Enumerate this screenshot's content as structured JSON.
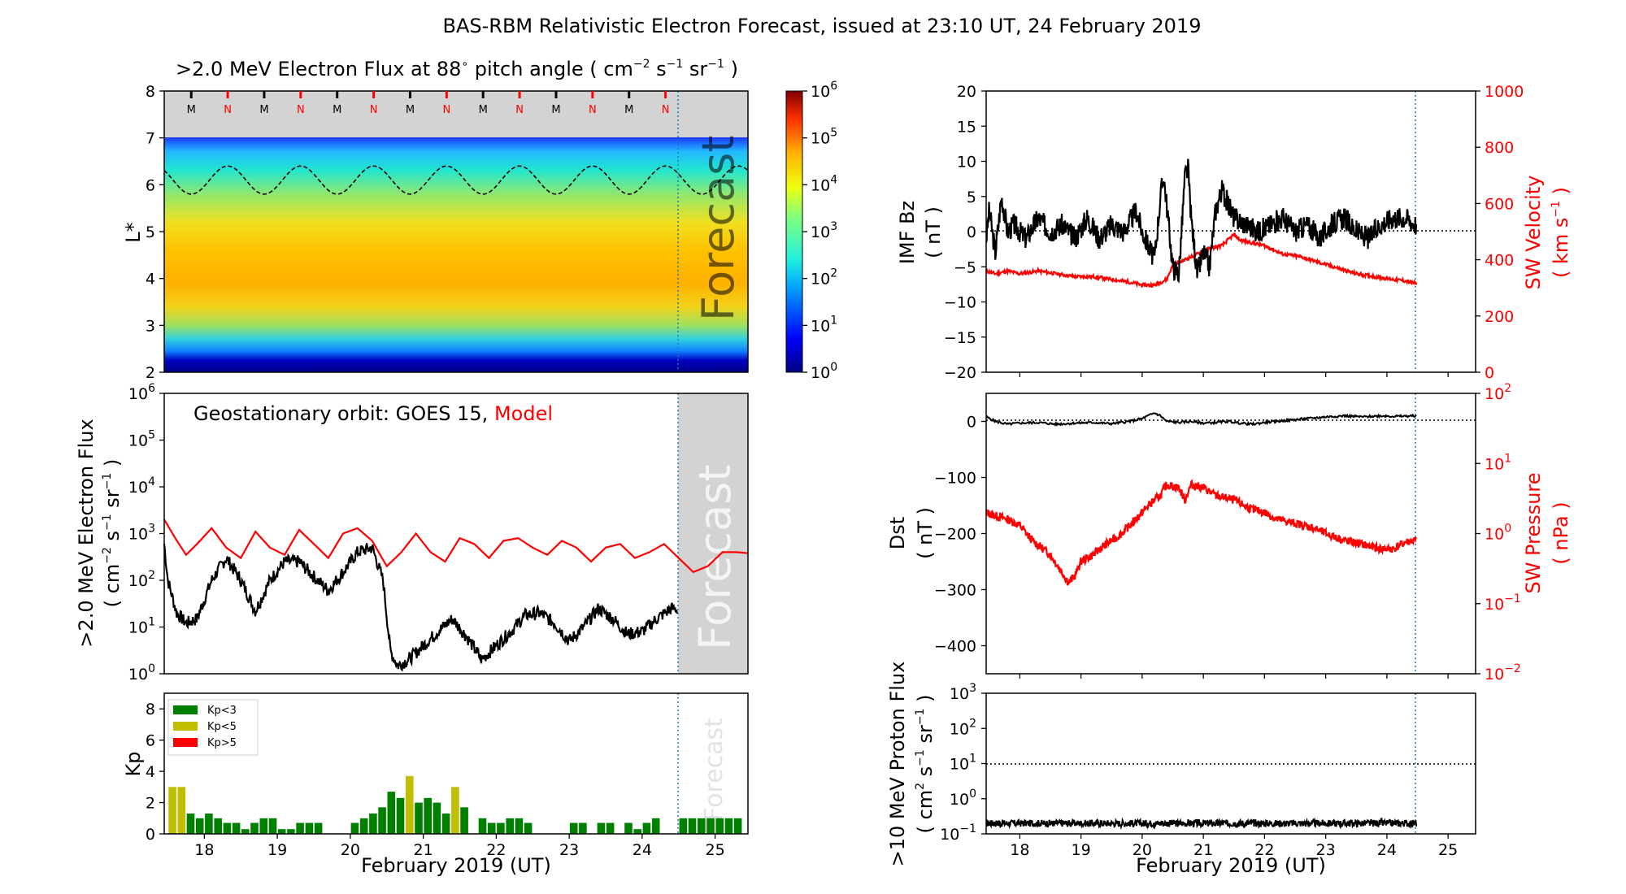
{
  "title": "BAS-RBM Relativistic Electron Forecast, issued at 23:10 UT, 24 February 2019",
  "x_axis_label": "February 2019 (UT)",
  "x_ticks": [
    "18",
    "19",
    "20",
    "21",
    "22",
    "23",
    "24",
    "25"
  ],
  "forecast_label": "Forecast",
  "colors": {
    "model": "#ff0000",
    "observed": "#000000",
    "forecast_shade": "#d3d3d3",
    "forecast_line": "#1f77b4",
    "kp_low": "#008000",
    "kp_mid": "#bfbf00",
    "kp_high": "#ff0000"
  },
  "chart_data": [
    {
      "id": "flux_map",
      "type": "heatmap",
      "title": ">2.0 MeV Electron Flux at 88° pitch angle ( cm-2 s-1 sr-1 )",
      "title_parts": {
        "prefix": ">2.0 MeV Electron Flux at 88",
        "deg": "∘",
        "mid": " pitch angle ( cm",
        "u1": "−2",
        "s": " s",
        "u2": "−1",
        "sr": " sr",
        "u3": "−1",
        "end": " )"
      },
      "ylabel": "L*",
      "ylim": [
        2,
        8
      ],
      "y_ticks": [
        "2",
        "3",
        "4",
        "5",
        "6",
        "7",
        "8"
      ],
      "xlim": [
        17.45,
        25.45
      ],
      "color_scale": "log",
      "colorbar_ticks": [
        {
          "base": "10",
          "exp": "0"
        },
        {
          "base": "10",
          "exp": "1"
        },
        {
          "base": "10",
          "exp": "2"
        },
        {
          "base": "10",
          "exp": "3"
        },
        {
          "base": "10",
          "exp": "4"
        },
        {
          "base": "10",
          "exp": "5"
        },
        {
          "base": "10",
          "exp": "6"
        }
      ],
      "orbit_markers": [
        "M",
        "N",
        "M",
        "N",
        "M",
        "N",
        "M",
        "N",
        "M",
        "N",
        "M",
        "N",
        "M",
        "N"
      ],
      "orbit_marker_colors": [
        "#000000",
        "#ff0000"
      ],
      "data_outer_L": 7,
      "geo_orbit_L_range": [
        5.8,
        6.4
      ]
    },
    {
      "id": "geo_flux",
      "type": "line",
      "ylabel": ">2.0 MeV Electron Flux",
      "ylabel_units": "( cm-2 s-1 sr-1 )",
      "ylim": [
        1,
        1000000
      ],
      "yscale": "log",
      "xlim": [
        17.45,
        25.45
      ],
      "legend_text": "Geostationary orbit:   GOES 15, ",
      "legend_model": "Model",
      "series": [
        {
          "name": "GOES 15",
          "x": [
            17.45,
            17.5,
            17.62,
            17.75,
            17.9,
            18.1,
            18.3,
            18.5,
            18.7,
            18.9,
            19.1,
            19.3,
            19.5,
            19.7,
            19.9,
            20.1,
            20.3,
            20.45,
            20.55,
            20.65,
            20.8,
            21.0,
            21.2,
            21.4,
            21.6,
            21.8,
            22.0,
            22.2,
            22.4,
            22.6,
            22.8,
            23.0,
            23.2,
            23.4,
            23.6,
            23.8,
            24.0,
            24.2,
            24.4,
            24.48
          ],
          "y": [
            600,
            100,
            20,
            12,
            15,
            100,
            300,
            100,
            22,
            100,
            250,
            250,
            120,
            60,
            150,
            400,
            500,
            100,
            3,
            1.5,
            2,
            4,
            8,
            15,
            6,
            2,
            4,
            8,
            18,
            20,
            12,
            5,
            10,
            25,
            15,
            7,
            8,
            15,
            25,
            24
          ]
        },
        {
          "name": "Model",
          "x": [
            17.45,
            17.6,
            17.75,
            17.9,
            18.1,
            18.3,
            18.5,
            18.7,
            18.9,
            19.1,
            19.3,
            19.5,
            19.7,
            19.9,
            20.1,
            20.3,
            20.5,
            20.7,
            20.9,
            21.1,
            21.3,
            21.5,
            21.7,
            21.9,
            22.1,
            22.3,
            22.5,
            22.7,
            22.9,
            23.1,
            23.3,
            23.5,
            23.7,
            23.9,
            24.1,
            24.3,
            24.5,
            24.7,
            24.9,
            25.1,
            25.3,
            25.45
          ],
          "y": [
            2000,
            800,
            350,
            600,
            1300,
            500,
            300,
            1100,
            500,
            350,
            1200,
            600,
            300,
            1000,
            1300,
            700,
            200,
            400,
            1000,
            400,
            250,
            800,
            600,
            300,
            700,
            800,
            500,
            350,
            700,
            500,
            250,
            500,
            600,
            300,
            400,
            600,
            300,
            150,
            200,
            400,
            400,
            380
          ]
        }
      ]
    },
    {
      "id": "kp",
      "type": "bar",
      "ylabel": "Kp",
      "ylim": [
        0,
        9
      ],
      "y_ticks": [
        "0",
        "2",
        "4",
        "6",
        "8"
      ],
      "xlim": [
        17.45,
        25.45
      ],
      "legend": [
        "Kp<3",
        "Kp<5",
        "Kp>5"
      ],
      "x": [
        17.5625,
        17.6875,
        17.8125,
        17.9375,
        18.0625,
        18.1875,
        18.3125,
        18.4375,
        18.5625,
        18.6875,
        18.8125,
        18.9375,
        19.0625,
        19.1875,
        19.3125,
        19.4375,
        19.5625,
        19.6875,
        19.8125,
        19.9375,
        20.0625,
        20.1875,
        20.3125,
        20.4375,
        20.5625,
        20.6875,
        20.8125,
        20.9375,
        21.0625,
        21.1875,
        21.3125,
        21.4375,
        21.5625,
        21.6875,
        21.8125,
        21.9375,
        22.0625,
        22.1875,
        22.3125,
        22.4375,
        22.5625,
        22.6875,
        22.8125,
        22.9375,
        23.0625,
        23.1875,
        23.3125,
        23.4375,
        23.5625,
        23.6875,
        23.8125,
        23.9375,
        24.0625,
        24.1875,
        24.3125,
        24.4375,
        24.5625,
        24.6875,
        24.8125,
        24.9375,
        25.0625,
        25.1875,
        25.3125
      ],
      "values": [
        3.0,
        3.0,
        1.3,
        1.0,
        1.3,
        1.0,
        0.7,
        0.7,
        0.3,
        0.7,
        1.0,
        1.0,
        0.3,
        0.3,
        0.7,
        0.7,
        0.7,
        0,
        0,
        0,
        0.7,
        1.0,
        1.3,
        1.7,
        2.7,
        2.3,
        3.7,
        2.0,
        2.3,
        2.0,
        1.3,
        3.0,
        1.7,
        0,
        1.0,
        0.7,
        0.7,
        1.0,
        1.0,
        0.7,
        0,
        0,
        0,
        0,
        0.7,
        0.7,
        0,
        0.7,
        0.7,
        0,
        0.7,
        0.3,
        0.7,
        1.0,
        0,
        0,
        1.0,
        1.0,
        1.0,
        1.0,
        1.0,
        1.0,
        1.0
      ]
    },
    {
      "id": "imf",
      "type": "line",
      "ylabel": "IMF Bz",
      "ylabel_units": "( nT )",
      "ylim": [
        -20,
        20
      ],
      "y_ticks": [
        "−20",
        "−15",
        "−10",
        "−5",
        "0",
        "5",
        "10",
        "15",
        "20"
      ],
      "ylabel2": "SW Velocity",
      "ylabel2_units": "( km s-1 )",
      "ylim2": [
        0,
        1000
      ],
      "y2_ticks": [
        "0",
        "200",
        "400",
        "600",
        "800",
        "1000"
      ],
      "xlim": [
        17.45,
        25.45
      ],
      "series": [
        {
          "name": "IMF Bz",
          "axis": "left",
          "x": [
            17.45,
            17.5,
            17.6,
            17.7,
            17.8,
            17.9,
            18.1,
            18.3,
            18.5,
            18.7,
            18.9,
            19.1,
            19.3,
            19.5,
            19.7,
            19.9,
            20.0,
            20.1,
            20.2,
            20.3,
            20.35,
            20.4,
            20.5,
            20.6,
            20.7,
            20.75,
            20.8,
            20.9,
            21.0,
            21.1,
            21.2,
            21.3,
            21.5,
            21.7,
            21.9,
            22.1,
            22.3,
            22.5,
            22.7,
            22.9,
            23.1,
            23.3,
            23.5,
            23.7,
            23.9,
            24.1,
            24.3,
            24.48
          ],
          "y": [
            -1,
            3,
            -3,
            5,
            0,
            1,
            -1,
            2,
            0,
            1,
            -1,
            2,
            -1,
            1,
            0,
            3,
            0,
            -2,
            -4,
            5,
            8,
            4,
            -5,
            -6,
            8,
            9,
            2,
            -6,
            -3,
            -5,
            3,
            6,
            2,
            1,
            0,
            1,
            2,
            0,
            1,
            -1,
            1,
            2,
            0,
            -1,
            1,
            2,
            2,
            1
          ]
        },
        {
          "name": "SW Velocity",
          "axis": "right",
          "x": [
            17.45,
            17.6,
            17.8,
            18.0,
            18.3,
            18.6,
            18.9,
            19.2,
            19.5,
            19.8,
            20.0,
            20.2,
            20.4,
            20.5,
            20.7,
            20.9,
            21.1,
            21.3,
            21.5,
            21.6,
            21.8,
            22.0,
            22.3,
            22.6,
            22.9,
            23.2,
            23.5,
            23.8,
            24.1,
            24.3,
            24.48
          ],
          "y": [
            360,
            350,
            360,
            350,
            360,
            350,
            340,
            340,
            330,
            320,
            310,
            310,
            330,
            380,
            400,
            420,
            440,
            450,
            490,
            470,
            460,
            450,
            420,
            410,
            390,
            370,
            350,
            340,
            330,
            325,
            315
          ]
        }
      ]
    },
    {
      "id": "dst",
      "type": "line",
      "ylabel": "Dst",
      "ylabel_units": "( nT )",
      "ylim": [
        -450,
        50
      ],
      "y_ticks": [
        "−400",
        "−300",
        "−200",
        "−100",
        "0"
      ],
      "ylabel2": "SW Pressure",
      "ylabel2_units": "( nPa )",
      "ylim2": [
        0.01,
        100
      ],
      "y2scale": "log",
      "xlim": [
        17.45,
        25.45
      ],
      "series": [
        {
          "name": "Dst",
          "axis": "left",
          "x": [
            17.45,
            17.6,
            17.8,
            18.0,
            18.3,
            18.6,
            18.9,
            19.2,
            19.5,
            19.8,
            20.0,
            20.2,
            20.3,
            20.4,
            20.6,
            20.8,
            21.0,
            21.2,
            21.4,
            21.6,
            21.8,
            22.0,
            22.2,
            22.4,
            22.6,
            22.8,
            23.0,
            23.3,
            23.6,
            23.9,
            24.2,
            24.48
          ],
          "y": [
            8,
            0,
            -5,
            -3,
            -2,
            -5,
            -3,
            -2,
            -4,
            0,
            5,
            15,
            10,
            0,
            -2,
            0,
            -3,
            -2,
            0,
            -3,
            -5,
            -2,
            0,
            2,
            4,
            6,
            8,
            10,
            8,
            10,
            9,
            10
          ]
        },
        {
          "name": "SW Pressure",
          "axis": "right",
          "x": [
            17.45,
            17.6,
            17.8,
            18.0,
            18.2,
            18.5,
            18.8,
            18.9,
            19.0,
            19.2,
            19.4,
            19.6,
            19.8,
            20.0,
            20.1,
            20.2,
            20.3,
            20.4,
            20.6,
            20.7,
            20.8,
            21.0,
            21.2,
            21.5,
            21.8,
            22.0,
            22.2,
            22.5,
            22.8,
            23.0,
            23.3,
            23.6,
            23.9,
            24.1,
            24.3,
            24.48
          ],
          "y": [
            2.0,
            1.8,
            1.6,
            1.3,
            0.8,
            0.5,
            0.2,
            0.25,
            0.4,
            0.5,
            0.7,
            0.9,
            1.3,
            2.0,
            2.5,
            3.0,
            3.5,
            5.0,
            4.5,
            3.0,
            5.0,
            4.5,
            3.5,
            3.0,
            2.2,
            2.0,
            1.6,
            1.4,
            1.2,
            1.0,
            0.8,
            0.7,
            0.6,
            0.6,
            0.75,
            0.8
          ]
        }
      ]
    },
    {
      "id": "proton",
      "type": "line",
      "ylabel": ">10 MeV Proton Flux",
      "ylabel_units": "( cm2 s-1 sr-1 )",
      "ylim": [
        0.1,
        1000
      ],
      "yscale": "log",
      "xlim": [
        17.45,
        25.45
      ],
      "threshold": 10,
      "series": [
        {
          "name": "Proton Flux",
          "x": [
            17.45,
            24.48
          ],
          "y": [
            0.2,
            0.2
          ]
        }
      ]
    }
  ],
  "forecast_start_day": 24.47
}
